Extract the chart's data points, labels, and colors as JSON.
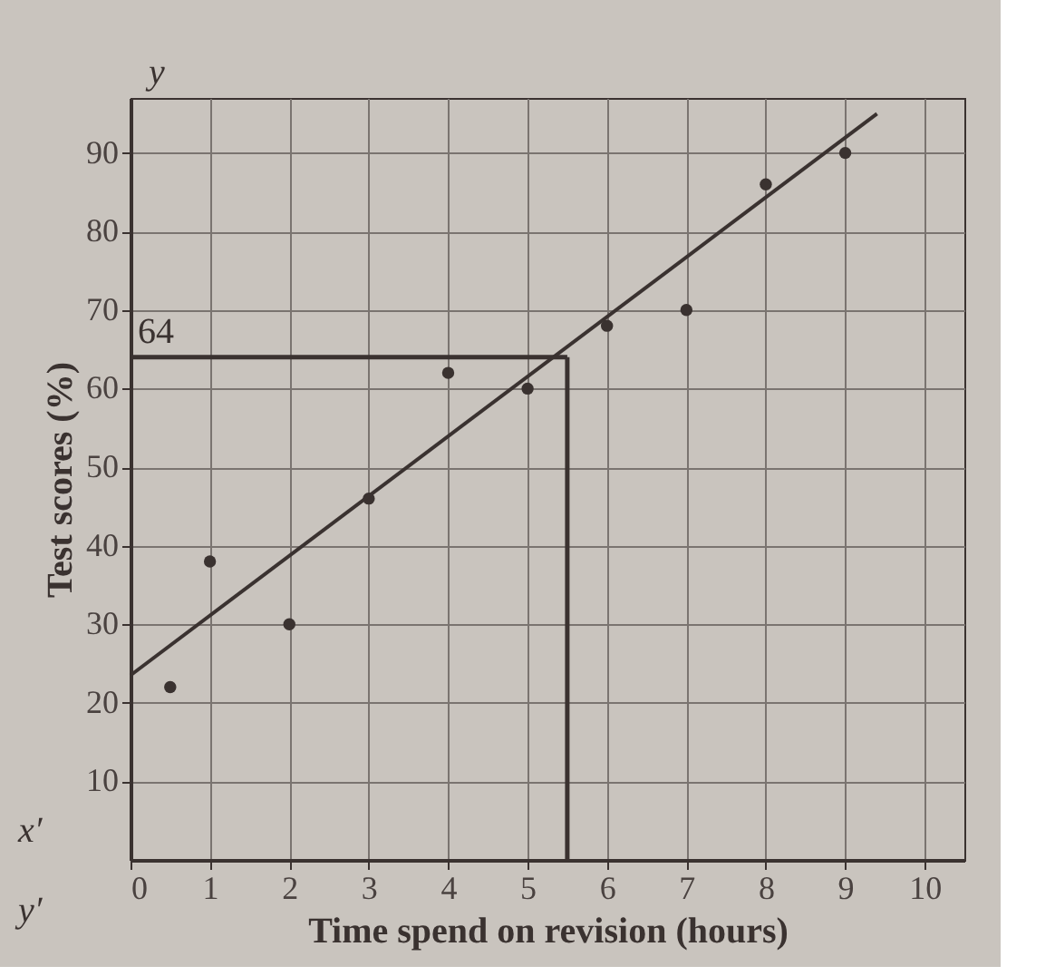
{
  "chart_data": {
    "type": "scatter",
    "xlabel": "Time spend on revision (hours)",
    "ylabel": "Test scores (%)",
    "series": [
      {
        "color": "#3a3230",
        "x": [
          0.5,
          1,
          2,
          3,
          4,
          5,
          6,
          7,
          8,
          9
        ],
        "values": [
          22,
          38,
          30,
          46,
          62,
          60,
          68,
          70,
          86,
          90
        ]
      },
      {
        "type": "line",
        "color": "#3a3230",
        "marker": "none",
        "x": [
          0,
          9.4
        ],
        "values": [
          23.5,
          95
        ]
      }
    ],
    "ref_lines": [
      {
        "axis": "y",
        "value": 64,
        "label": "64",
        "color": "#3a3230"
      },
      {
        "axis": "x",
        "value": 5.5,
        "color": "#3a3230"
      }
    ],
    "annotations": [
      "y",
      "x′",
      "y′"
    ],
    "xlim": [
      0,
      10.5
    ],
    "ylim": [
      0,
      97
    ],
    "xticks": [
      0,
      1,
      2,
      3,
      4,
      5,
      6,
      7,
      8,
      9,
      10
    ],
    "yticks": [
      10,
      20,
      30,
      40,
      50,
      60,
      70,
      80,
      90
    ],
    "grid": true,
    "marker": "circle",
    "line_style": "solid"
  }
}
